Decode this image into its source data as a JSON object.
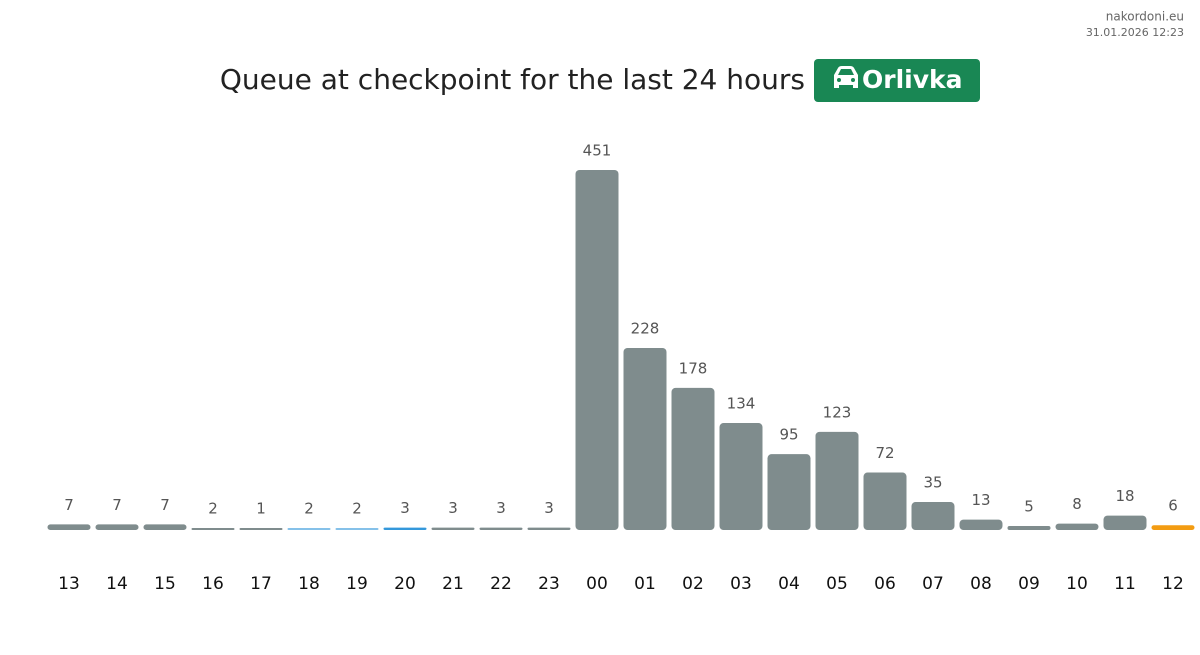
{
  "site": "nakordoni.eu",
  "timestamp": "31.01.2026 12:23",
  "chart_data": {
    "type": "bar",
    "title": "Queue at checkpoint for the last 24 hours",
    "badge": "Orlivka",
    "categories": [
      "13",
      "14",
      "15",
      "16",
      "17",
      "18",
      "19",
      "20",
      "21",
      "22",
      "23",
      "00",
      "01",
      "02",
      "03",
      "04",
      "05",
      "06",
      "07",
      "08",
      "09",
      "10",
      "11",
      "12"
    ],
    "values": [
      7,
      7,
      7,
      2,
      1,
      2,
      2,
      3,
      3,
      3,
      3,
      451,
      228,
      178,
      134,
      95,
      123,
      72,
      35,
      13,
      5,
      8,
      18,
      6
    ],
    "colors": [
      "#7f8c8d",
      "#7f8c8d",
      "#7f8c8d",
      "#7f8c8d",
      "#7f8c8d",
      "#85c1e9",
      "#85c1e9",
      "#3498db",
      "#7f8c8d",
      "#7f8c8d",
      "#7f8c8d",
      "#7f8c8d",
      "#7f8c8d",
      "#7f8c8d",
      "#7f8c8d",
      "#7f8c8d",
      "#7f8c8d",
      "#7f8c8d",
      "#7f8c8d",
      "#7f8c8d",
      "#7f8c8d",
      "#7f8c8d",
      "#7f8c8d",
      "#f39c12"
    ]
  }
}
